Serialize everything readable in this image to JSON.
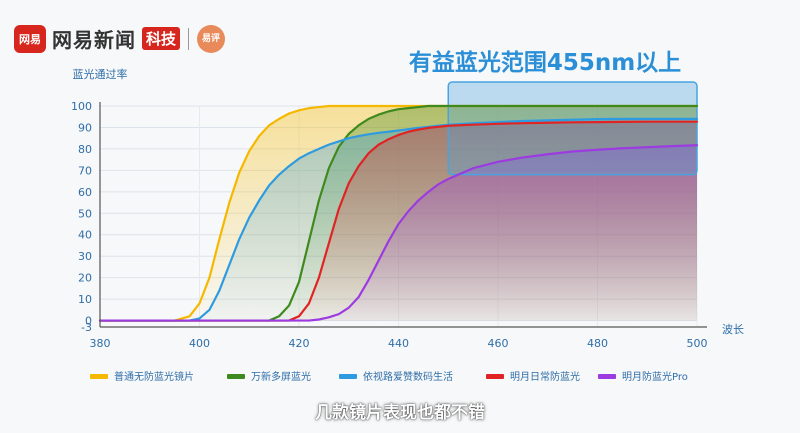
{
  "brand": {
    "logo_text": "网易",
    "name": "网易新闻",
    "tag": "科技",
    "badge_text": "易评"
  },
  "subtitle": "几款镜片表现也都不错",
  "chart_data": {
    "type": "line",
    "title": "",
    "xlabel": "波长",
    "ylabel": "蓝光通过率",
    "xlim": [
      380,
      500
    ],
    "ylim": [
      -3,
      100
    ],
    "x_ticks": [
      380,
      400,
      420,
      440,
      460,
      480,
      500
    ],
    "y_ticks": [
      -3,
      0,
      10,
      20,
      30,
      40,
      50,
      60,
      70,
      80,
      90,
      100
    ],
    "grid": true,
    "legend_position": "bottom",
    "annotation": {
      "text": "有益蓝光范围455nm以上",
      "region": {
        "x": [
          450,
          500
        ],
        "y": [
          68,
          100
        ]
      },
      "color": "#4aa3df"
    },
    "x": [
      380,
      390,
      395,
      398,
      400,
      402,
      404,
      406,
      408,
      410,
      412,
      414,
      416,
      418,
      420,
      422,
      424,
      426,
      428,
      430,
      432,
      434,
      436,
      438,
      440,
      442,
      444,
      446,
      448,
      450,
      455,
      460,
      465,
      470,
      475,
      480,
      485,
      490,
      495,
      500
    ],
    "series": [
      {
        "name": "普通无防蓝光镜片",
        "color": "#f5b800",
        "values": [
          0,
          0,
          0,
          2,
          8,
          20,
          38,
          55,
          69,
          79,
          86,
          91,
          94,
          96.5,
          98,
          99,
          99.5,
          100,
          100,
          100,
          100,
          100,
          100,
          100,
          100,
          100,
          100,
          100,
          100,
          100,
          100,
          100,
          100,
          100,
          100,
          100,
          100,
          100,
          100,
          100
        ]
      },
      {
        "name": "万新多屏蓝光",
        "color": "#3f8a1e",
        "values": [
          0,
          0,
          0,
          0,
          0,
          0,
          0,
          0,
          0,
          0,
          0,
          0,
          2,
          7,
          18,
          37,
          56,
          71,
          81,
          87,
          91,
          94,
          96,
          97.5,
          98.5,
          99,
          99.5,
          100,
          100,
          100,
          100,
          100,
          100,
          100,
          100,
          100,
          100,
          100,
          100,
          100
        ]
      },
      {
        "name": "依视路爱赞数码生活",
        "color": "#2e9be0",
        "values": [
          0,
          0,
          0,
          0,
          1,
          5,
          14,
          26,
          38,
          48,
          56,
          63,
          68,
          72,
          75.5,
          78,
          80,
          82,
          83.5,
          85,
          86,
          86.8,
          87.5,
          88,
          88.6,
          89.2,
          89.8,
          90.3,
          90.8,
          91.2,
          92,
          92.5,
          93,
          93.3,
          93.6,
          93.9,
          94,
          94,
          94,
          94
        ]
      },
      {
        "name": "明月日常防蓝光",
        "color": "#e02424",
        "values": [
          0,
          0,
          0,
          0,
          0,
          0,
          0,
          0,
          0,
          0,
          0,
          0,
          0,
          0,
          2,
          8,
          20,
          36,
          52,
          64,
          72,
          78,
          82,
          84.5,
          86.5,
          88,
          89,
          89.8,
          90.3,
          90.8,
          91.3,
          91.7,
          92,
          92.2,
          92.4,
          92.5,
          92.6,
          92.7,
          92.7,
          92.7
        ]
      },
      {
        "name": "明月防蓝光Pro",
        "color": "#9b3be0",
        "values": [
          0,
          0,
          0,
          0,
          0,
          0,
          0,
          0,
          0,
          0,
          0,
          0,
          0,
          0,
          0,
          0,
          0.5,
          1.5,
          3,
          6,
          11,
          19,
          28,
          37,
          45,
          51,
          56,
          60,
          63.5,
          66,
          71,
          74,
          76,
          77.5,
          78.8,
          79.6,
          80.3,
          80.8,
          81.3,
          81.7
        ]
      }
    ]
  }
}
